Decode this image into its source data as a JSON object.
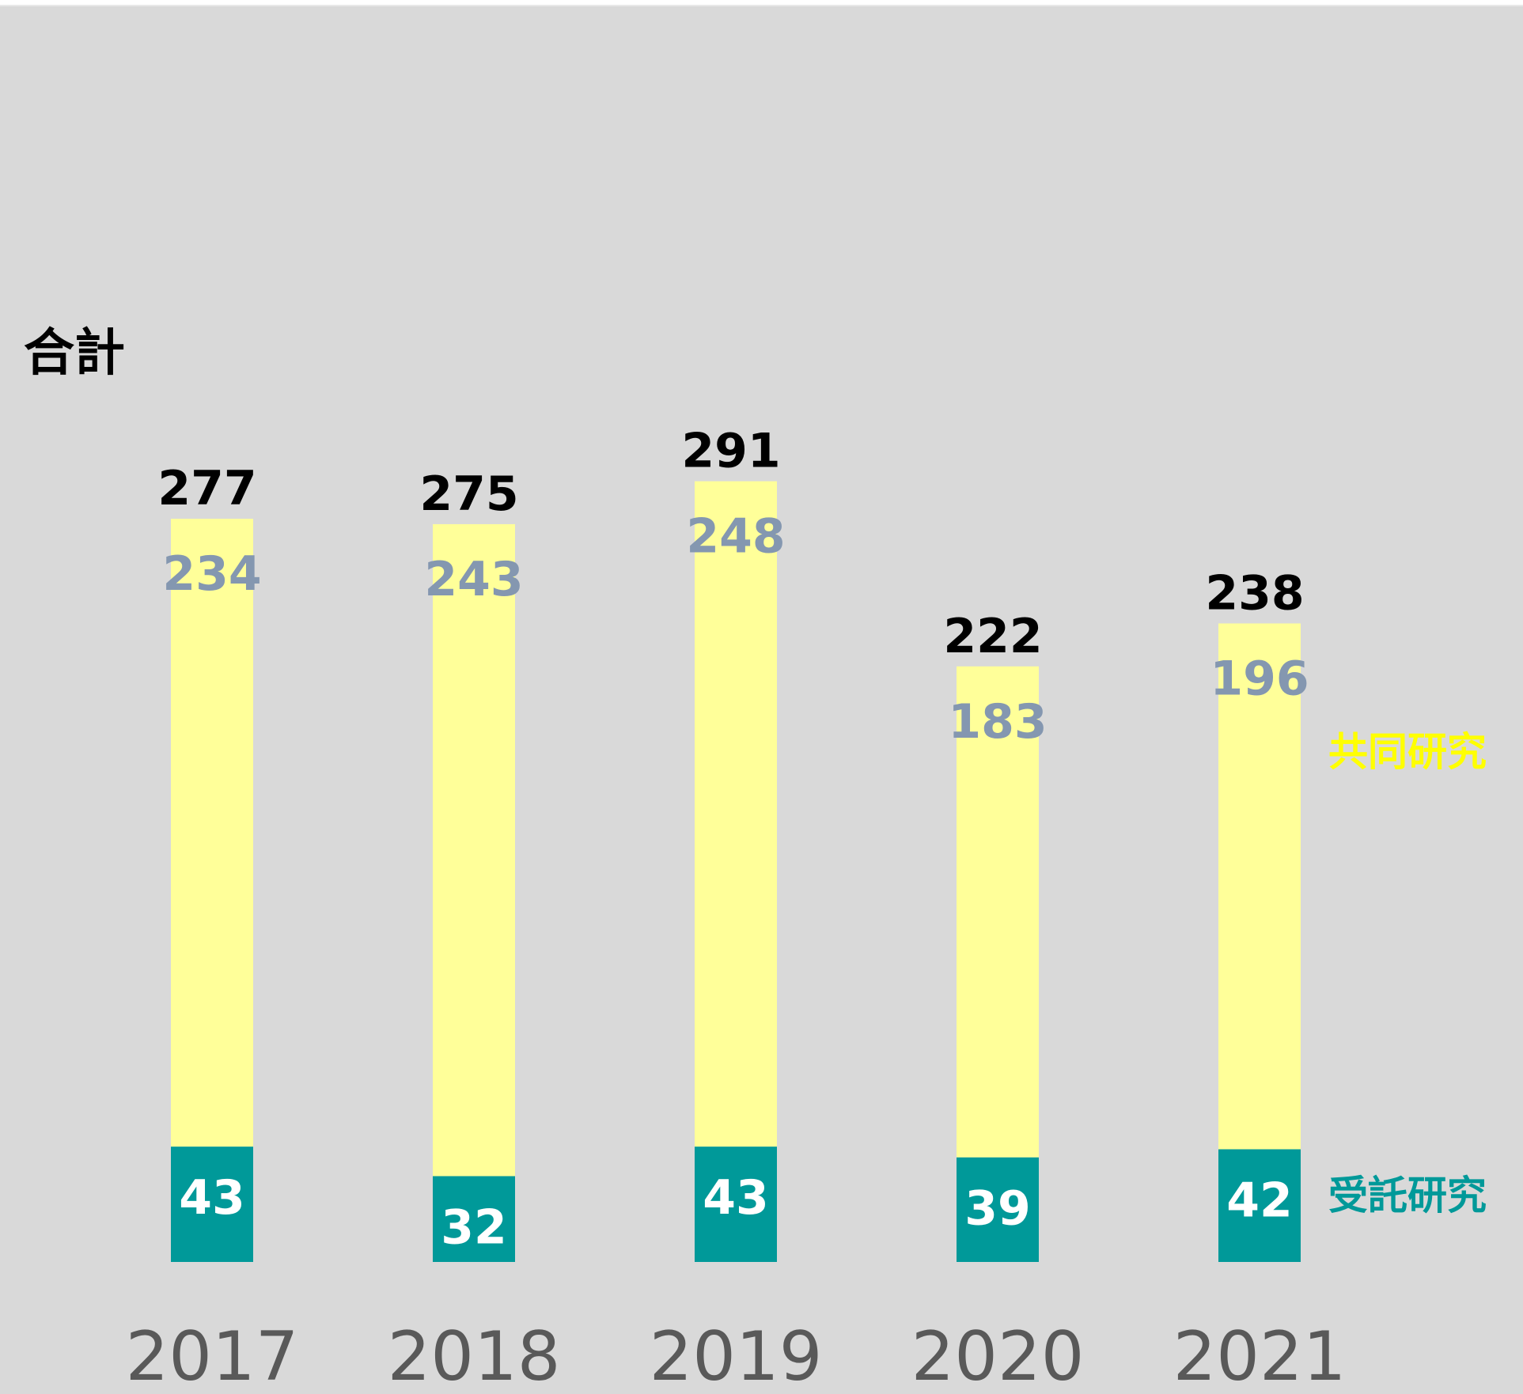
{
  "chart_data": {
    "type": "bar",
    "stacked": true,
    "categories": [
      "2017",
      "2018",
      "2019",
      "2020",
      "2021"
    ],
    "series": [
      {
        "name": "受託研究",
        "values": [
          43,
          32,
          43,
          39,
          42
        ],
        "color": "#009999",
        "label_color": "#ffffff"
      },
      {
        "name": "共同研究",
        "values": [
          234,
          243,
          248,
          183,
          196
        ],
        "color": "#ffff99",
        "label_color": "#8497b0"
      }
    ],
    "totals": [
      277,
      275,
      291,
      222,
      238
    ],
    "totals_label": "合計",
    "ylim": [
      0,
      300
    ],
    "grid": false,
    "legend": "labels beside last bar (right)",
    "colors": {
      "background": "#d9d9d9",
      "total_text": "#000000",
      "year_text": "#595959",
      "joint_name": "#ffff00",
      "contract_name": "#009999"
    }
  }
}
